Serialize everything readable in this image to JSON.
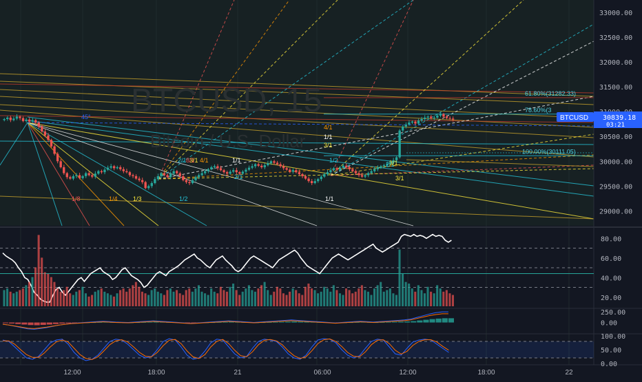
{
  "symbol_watermark": "BTCUSD, 15",
  "symbol_sub": "Bitcoin / U.S. Dollar",
  "price_badge": {
    "symbol": "BTCUSD",
    "price": "30839.18",
    "countdown": "03:21"
  },
  "colors": {
    "bg": "#131722",
    "bull": "#26a69a",
    "bear": "#ef5350",
    "axis_text": "#b2b5be",
    "badge": "#2962ff",
    "rsi_line": "#ffffff",
    "macd_line": "#2962ff",
    "signal_line": "#ff6d00",
    "stoch_k": "#2962ff",
    "stoch_d": "#ff6d00"
  },
  "fib_labels": [
    {
      "text": "61.80%(31282.33)",
      "price": 31282.33,
      "color": "#4dd0e1"
    },
    {
      "text": "78.60%(3",
      "price": 30950,
      "color": "#4dd0e1"
    },
    {
      "text": "100.00%(30111.05)",
      "price": 30111.05,
      "color": "#4dd0e1"
    }
  ],
  "gann_labels": [
    {
      "text": "1/8",
      "color": "#ef5350"
    },
    {
      "text": "1/4",
      "color": "#ff9800"
    },
    {
      "text": "1/3",
      "color": "#ffeb3b"
    },
    {
      "text": "1/2",
      "color": "#26c6da"
    },
    {
      "text": "1/1",
      "color": "#ffffff"
    },
    {
      "text": "2/1",
      "color": "#26c6da"
    },
    {
      "text": "3/1",
      "color": "#ffeb3b"
    },
    {
      "text": "4/1",
      "color": "#ff9800"
    },
    {
      "text": "8/1",
      "color": "#ef5350"
    },
    {
      "text": "1/1",
      "color": "#ffffff"
    },
    {
      "text": "2/1",
      "color": "#26c6da"
    },
    {
      "text": "3/1",
      "color": "#ffeb3b"
    },
    {
      "text": "4/1",
      "color": "#ff9800"
    },
    {
      "text": "1/1",
      "color": "#ffffff"
    },
    {
      "text": "1/2",
      "color": "#26c6da"
    },
    {
      "text": "2/1",
      "color": "#26c6da"
    },
    {
      "text": "3/1",
      "color": "#ffeb3b"
    },
    {
      "text": "3/1",
      "color": "#ffeb3b"
    },
    {
      "text": "45°",
      "color": "#2962ff"
    }
  ],
  "axes": {
    "price_ticks": [
      "33000.00",
      "32500.00",
      "32000.00",
      "31500.00",
      "31000.00",
      "30500.00",
      "30000.00",
      "29500.00",
      "29000.00"
    ],
    "rsi_ticks": [
      "80.00",
      "60.00",
      "40.00",
      "20.00"
    ],
    "macd_ticks": [
      "250.00",
      "0.00"
    ],
    "stoch_ticks": [
      "100.00",
      "50.00",
      "0.00"
    ],
    "time_ticks": [
      "12:00",
      "18:00",
      "21",
      "06:00",
      "12:00",
      "18:00",
      "22"
    ]
  },
  "chart_data": [
    {
      "type": "candlestick",
      "title": "BTCUSD, 15",
      "subtitle": "Bitcoin / U.S. Dollar",
      "ylim": [
        28700,
        33250
      ],
      "close": [
        30850,
        30880,
        30830,
        30860,
        30900,
        30870,
        30810,
        30840,
        30800,
        30830,
        30780,
        30700,
        30600,
        30520,
        30430,
        30300,
        30150,
        30000,
        29880,
        29760,
        29680,
        29650,
        29700,
        29720,
        29660,
        29700,
        29760,
        29720,
        29690,
        29750,
        29800,
        29780,
        29830,
        29870,
        29900,
        29860,
        29880,
        29840,
        29800,
        29780,
        29720,
        29700,
        29650,
        29620,
        29580,
        29460,
        29500,
        29560,
        29640,
        29700,
        29760,
        29720,
        29680,
        29750,
        29800,
        29760,
        29700,
        29620,
        29580,
        29560,
        29620,
        29680,
        29720,
        29760,
        29800,
        29840,
        29880,
        29900,
        29860,
        29820,
        29780,
        29750,
        29790,
        29820,
        29780,
        29750,
        29790,
        29830,
        29870,
        29900,
        29940,
        29910,
        29880,
        29920,
        29960,
        30000,
        29970,
        29940,
        29900,
        29860,
        29830,
        29790,
        29820,
        29780,
        29740,
        29700,
        29650,
        29600,
        29560,
        29600,
        29640,
        29690,
        29740,
        29780,
        29820,
        29860,
        29830,
        29870,
        29910,
        29880,
        29840,
        29800,
        29760,
        29720,
        29690,
        29720,
        29760,
        29800,
        29840,
        29870,
        29900,
        29920,
        29950,
        29980,
        30020,
        30080,
        30620,
        30700,
        30740,
        30780,
        30800,
        30760,
        30820,
        30850,
        30880,
        30900,
        30870,
        30880,
        30920,
        30950,
        30900,
        30870,
        30860,
        30840
      ],
      "volume_series_k": [
        20,
        22,
        18,
        16,
        18,
        20,
        22,
        26,
        30,
        36,
        48,
        88,
        60,
        42,
        40,
        36,
        30,
        22,
        18,
        20,
        24,
        16,
        14,
        18,
        20,
        24,
        16,
        12,
        14,
        18,
        20,
        22,
        18,
        16,
        14,
        12,
        16,
        20,
        22,
        18,
        22,
        26,
        30,
        24,
        18,
        16,
        14,
        20,
        22,
        18,
        16,
        14,
        20,
        22,
        18,
        20,
        16,
        14,
        20,
        22,
        18,
        22,
        26,
        18,
        16,
        14,
        22,
        18,
        16,
        24,
        20,
        18,
        24,
        28,
        20,
        14,
        18,
        22,
        26,
        20,
        18,
        22,
        26,
        30,
        20,
        14,
        18,
        24,
        22,
        16,
        14,
        18,
        22,
        20,
        16,
        14,
        24,
        28,
        22,
        20,
        16,
        18,
        24,
        22,
        18,
        26,
        20,
        16,
        14,
        22,
        20,
        16,
        18,
        22,
        26,
        20,
        18,
        14,
        22,
        26,
        30,
        18,
        20,
        22,
        16,
        14,
        70,
        40,
        30,
        28,
        22,
        18,
        26,
        20,
        16,
        24,
        18,
        16,
        26,
        22,
        18,
        20,
        16,
        14
      ],
      "rsi": [
        65,
        62,
        60,
        58,
        55,
        50,
        46,
        40,
        38,
        32,
        25,
        22,
        18,
        16,
        15,
        15,
        22,
        28,
        30,
        25,
        22,
        26,
        30,
        34,
        38,
        40,
        36,
        40,
        44,
        46,
        48,
        50,
        46,
        44,
        42,
        38,
        40,
        44,
        48,
        50,
        46,
        42,
        40,
        38,
        35,
        30,
        32,
        36,
        40,
        44,
        46,
        44,
        42,
        46,
        48,
        50,
        52,
        55,
        58,
        60,
        62,
        64,
        60,
        58,
        55,
        52,
        50,
        54,
        58,
        60,
        62,
        58,
        55,
        52,
        48,
        46,
        48,
        52,
        56,
        60,
        62,
        60,
        58,
        56,
        54,
        52,
        50,
        54,
        58,
        60,
        62,
        64,
        66,
        68,
        65,
        60,
        56,
        52,
        50,
        48,
        46,
        44,
        48,
        52,
        56,
        60,
        62,
        64,
        62,
        60,
        58,
        60,
        62,
        64,
        66,
        68,
        70,
        72,
        74,
        70,
        68,
        66,
        68,
        70,
        72,
        74,
        76,
        82,
        84,
        83,
        82,
        84,
        82,
        83,
        82,
        80,
        82,
        84,
        82,
        83,
        82,
        78,
        76,
        78
      ],
      "macd": [
        -40,
        -60,
        -90,
        -120,
        -150,
        -160,
        -140,
        -120,
        -90,
        -60,
        -40,
        -20,
        -10,
        0,
        10,
        20,
        30,
        20,
        10,
        5,
        0,
        10,
        20,
        30,
        40,
        30,
        20,
        10,
        0,
        -10,
        -20,
        -10,
        0,
        10,
        20,
        30,
        40,
        30,
        20,
        10,
        0,
        10,
        20,
        30,
        40,
        50,
        60,
        50,
        40,
        30,
        20,
        10,
        0,
        -10,
        0,
        10,
        20,
        30,
        20,
        10,
        20,
        30,
        40,
        50,
        60,
        80,
        120,
        160,
        200,
        230,
        250,
        250
      ],
      "stoch_k": [
        85,
        80,
        60,
        40,
        20,
        15,
        25,
        50,
        75,
        85,
        88,
        70,
        40,
        20,
        10,
        15,
        30,
        55,
        80,
        88,
        85,
        70,
        50,
        30,
        20,
        25,
        50,
        80,
        90,
        85,
        60,
        30,
        15,
        20,
        45,
        75,
        88,
        85,
        60,
        35,
        20,
        25,
        55,
        80,
        88,
        85,
        80,
        60,
        35,
        20,
        15,
        30,
        60,
        85,
        90,
        88,
        75,
        50,
        30,
        20,
        28,
        55,
        80,
        88,
        85,
        60,
        35,
        30,
        55,
        78,
        85,
        88,
        85,
        70,
        55,
        40
      ],
      "stoch_d": [
        82,
        82,
        70,
        50,
        32,
        22,
        22,
        38,
        60,
        78,
        85,
        78,
        55,
        32,
        18,
        14,
        24,
        45,
        68,
        82,
        86,
        78,
        60,
        40,
        26,
        24,
        40,
        65,
        84,
        87,
        72,
        45,
        24,
        18,
        32,
        60,
        80,
        87,
        72,
        48,
        28,
        24,
        42,
        68,
        84,
        87,
        82,
        68,
        46,
        28,
        18,
        24,
        46,
        72,
        86,
        89,
        80,
        62,
        40,
        26,
        24,
        42,
        68,
        84,
        86,
        72,
        48,
        34,
        44,
        66,
        80,
        86,
        86,
        78,
        62,
        48
      ]
    }
  ]
}
